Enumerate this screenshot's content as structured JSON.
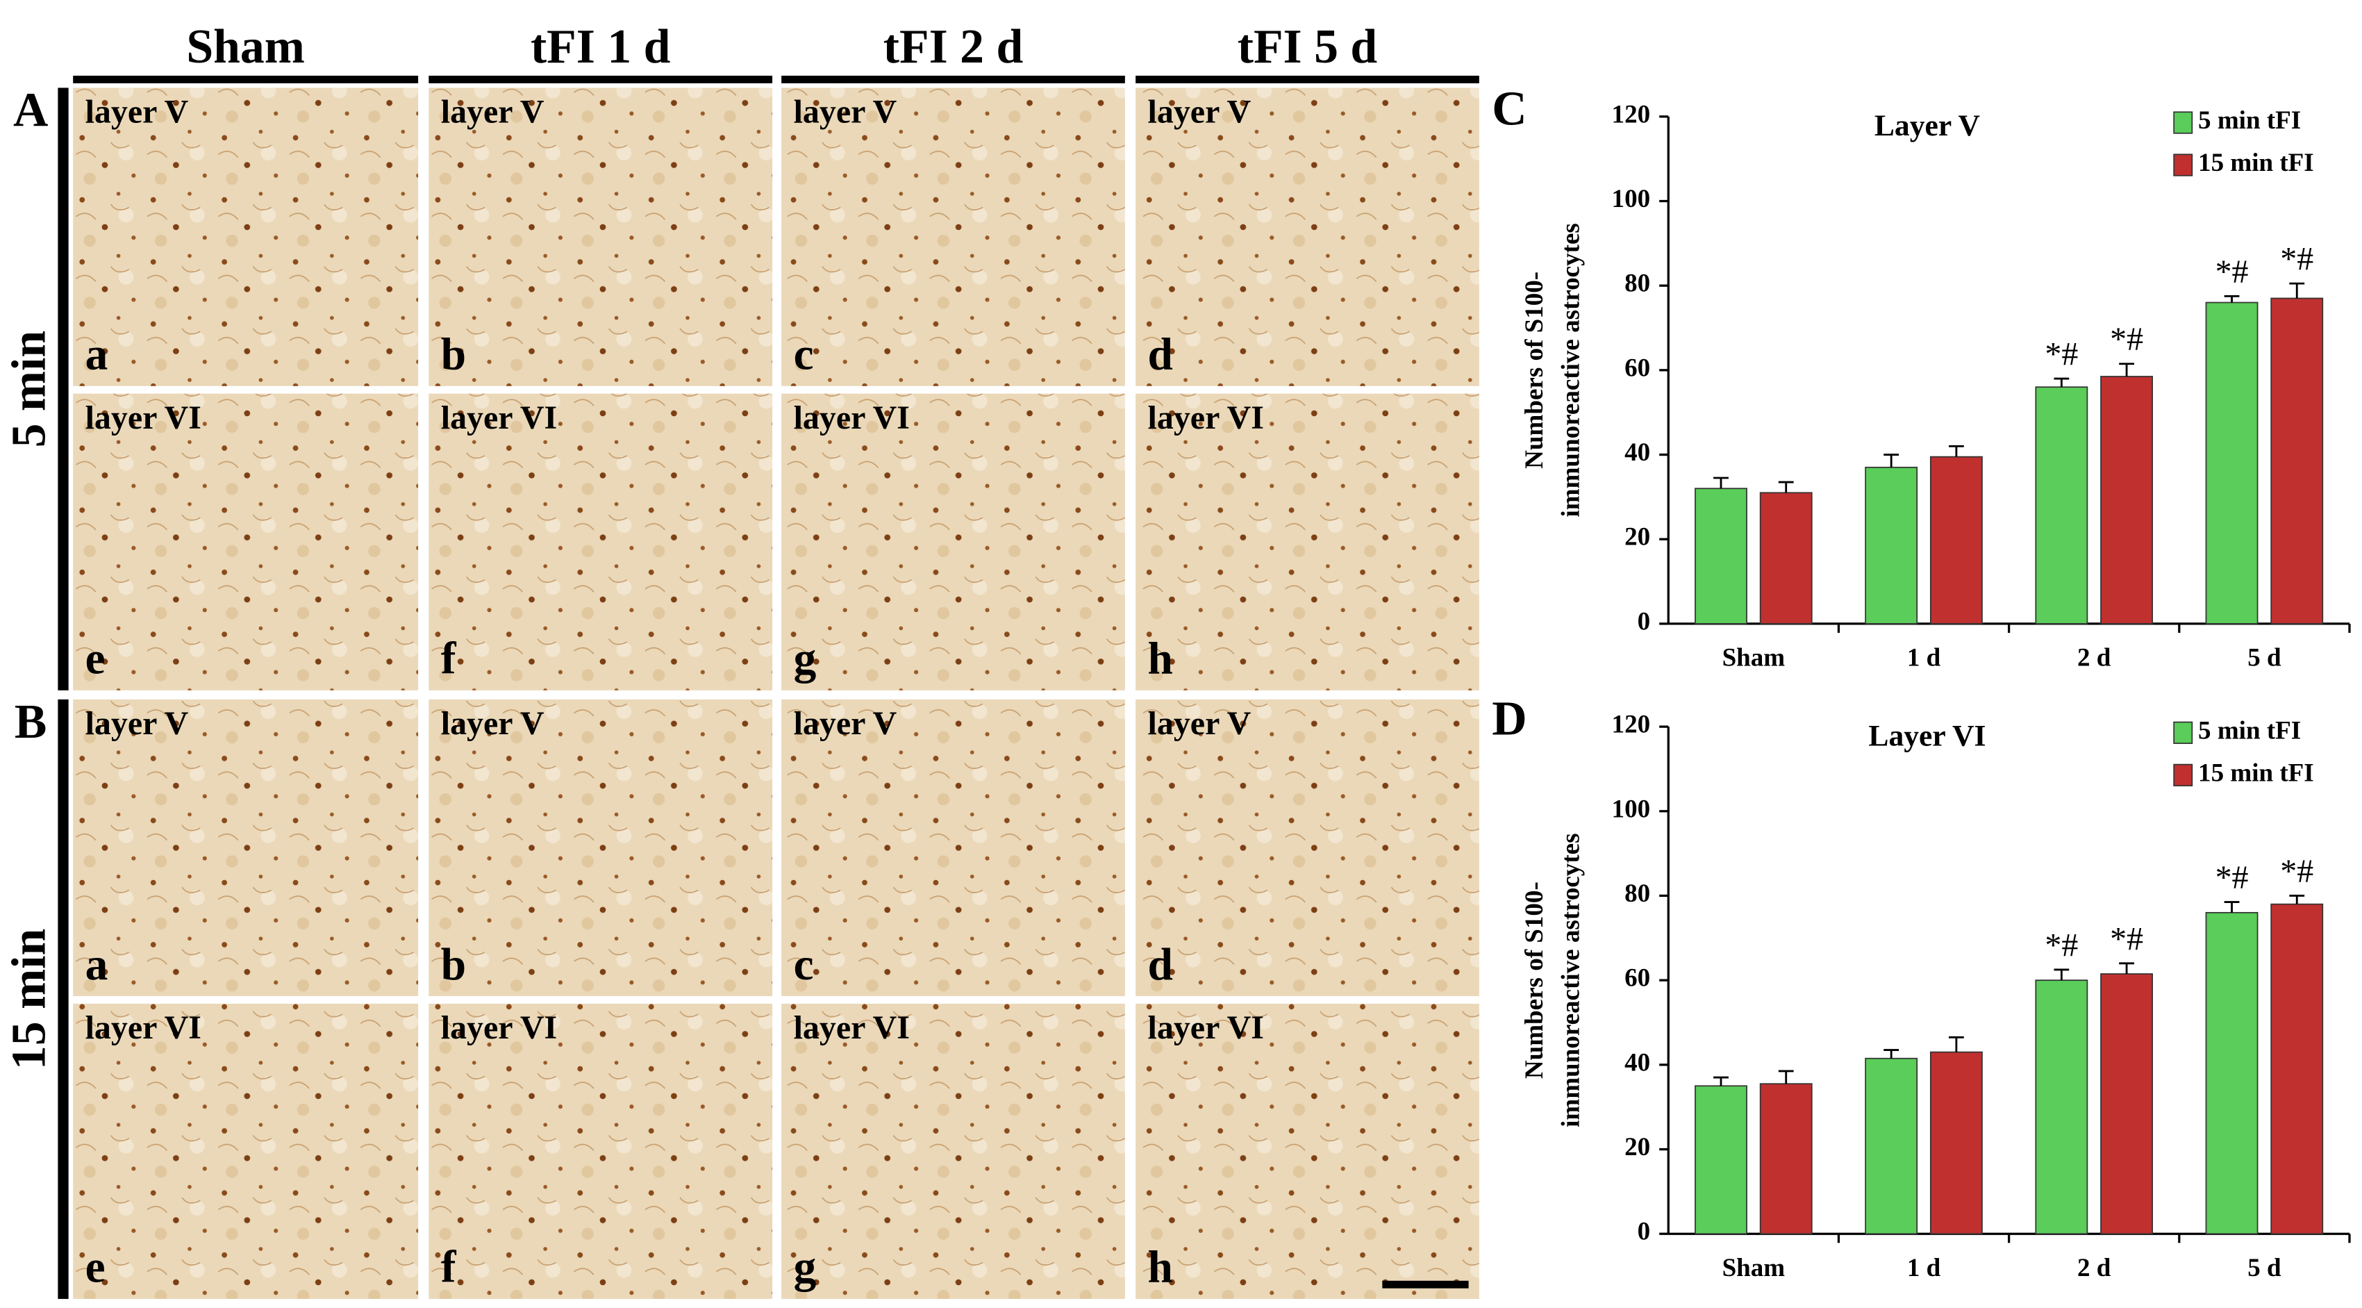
{
  "figure": {
    "column_headers": [
      "Sham",
      "tFI 1 d",
      "tFI 2 d",
      "tFI 5 d"
    ],
    "image_panels": [
      {
        "panel": "A",
        "row_label": "5 min",
        "tiles": [
          {
            "layer": "layer V",
            "letter": "a"
          },
          {
            "layer": "layer V",
            "letter": "b"
          },
          {
            "layer": "layer V",
            "letter": "c"
          },
          {
            "layer": "layer V",
            "letter": "d"
          },
          {
            "layer": "layer VI",
            "letter": "e"
          },
          {
            "layer": "layer VI",
            "letter": "f"
          },
          {
            "layer": "layer VI",
            "letter": "g"
          },
          {
            "layer": "layer VI",
            "letter": "h"
          }
        ]
      },
      {
        "panel": "B",
        "row_label": "15 min",
        "tiles": [
          {
            "layer": "layer V",
            "letter": "a"
          },
          {
            "layer": "layer V",
            "letter": "b"
          },
          {
            "layer": "layer V",
            "letter": "c"
          },
          {
            "layer": "layer V",
            "letter": "d"
          },
          {
            "layer": "layer VI",
            "letter": "e"
          },
          {
            "layer": "layer VI",
            "letter": "f"
          },
          {
            "layer": "layer VI",
            "letter": "g"
          },
          {
            "layer": "layer VI",
            "letter": "h"
          }
        ]
      }
    ]
  },
  "chart_data": [
    {
      "type": "bar",
      "panel": "C",
      "title": "Layer V",
      "ylabel": [
        "Numbers of S100-",
        "immunoreactive astrocytes"
      ],
      "categories": [
        "Sham",
        "1 d",
        "2 d",
        "5 d"
      ],
      "ylim": [
        0,
        120
      ],
      "yticks": [
        0,
        20,
        40,
        60,
        80,
        100,
        120
      ],
      "legend": "upper right",
      "series": [
        {
          "name": "5 min tFI",
          "color": "#5acd5a",
          "values": [
            32,
            37,
            56,
            76
          ],
          "errors": [
            2.5,
            3,
            2,
            1.5
          ],
          "markers": [
            null,
            null,
            "*#",
            "*#"
          ]
        },
        {
          "name": "15 min tFI",
          "color": "#c0302f",
          "values": [
            31,
            39.5,
            58.5,
            77
          ],
          "errors": [
            2.5,
            2.5,
            3,
            3.5
          ],
          "markers": [
            null,
            null,
            "*#",
            "*#"
          ]
        }
      ]
    },
    {
      "type": "bar",
      "panel": "D",
      "title": "Layer VI",
      "ylabel": [
        "Numbers of S100-",
        "immunoreactive astrocytes"
      ],
      "categories": [
        "Sham",
        "1 d",
        "2 d",
        "5 d"
      ],
      "ylim": [
        0,
        120
      ],
      "yticks": [
        0,
        20,
        40,
        60,
        80,
        100,
        120
      ],
      "legend": "upper right",
      "series": [
        {
          "name": "5 min tFI",
          "color": "#5acd5a",
          "values": [
            35,
            41.5,
            60,
            76
          ],
          "errors": [
            2,
            2,
            2.5,
            2.5
          ],
          "markers": [
            null,
            null,
            "*#",
            "*#"
          ]
        },
        {
          "name": "15 min tFI",
          "color": "#c0302f",
          "values": [
            35.5,
            43,
            61.5,
            78
          ],
          "errors": [
            3,
            3.5,
            2.5,
            2
          ],
          "markers": [
            null,
            null,
            "*#",
            "*#"
          ]
        }
      ]
    }
  ]
}
